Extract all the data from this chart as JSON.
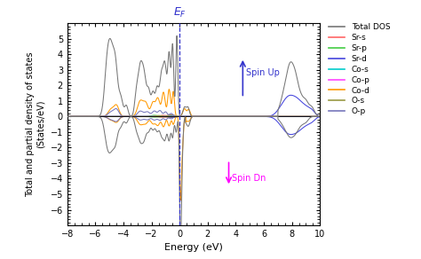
{
  "xlabel": "Energy (eV)",
  "ylabel": "Total and partial density of states\n(States/eV)",
  "xlim": [
    -8,
    10
  ],
  "ylim": [
    -7,
    6
  ],
  "yticks": [
    -6,
    -5,
    -4,
    -3,
    -2,
    -1,
    0,
    1,
    2,
    3,
    4,
    5
  ],
  "xticks": [
    -8,
    -6,
    -4,
    -2,
    0,
    2,
    4,
    6,
    8,
    10
  ],
  "fermi_energy": 0.0,
  "spin_up_x": 4.5,
  "spin_up_y_tail": 1.2,
  "spin_up_y_head": 3.8,
  "spin_dn_x": 3.5,
  "spin_dn_y_tail": -2.8,
  "spin_dn_y_head": -4.5,
  "colors": {
    "Total DOS": "#777777",
    "Sr-s": "#ff6666",
    "Sr-p": "#44cc44",
    "Sr-d": "#4444dd",
    "Co-s": "#00cccc",
    "Co-p": "#ff44ff",
    "Co-d": "#ff9900",
    "O-s": "#999944",
    "O-p": "#7777bb"
  },
  "legend_entries": [
    "Total DOS",
    "Sr-s",
    "Sr-p",
    "Sr-d",
    "Co-s",
    "Co-p",
    "Co-d",
    "O-s",
    "O-p"
  ]
}
